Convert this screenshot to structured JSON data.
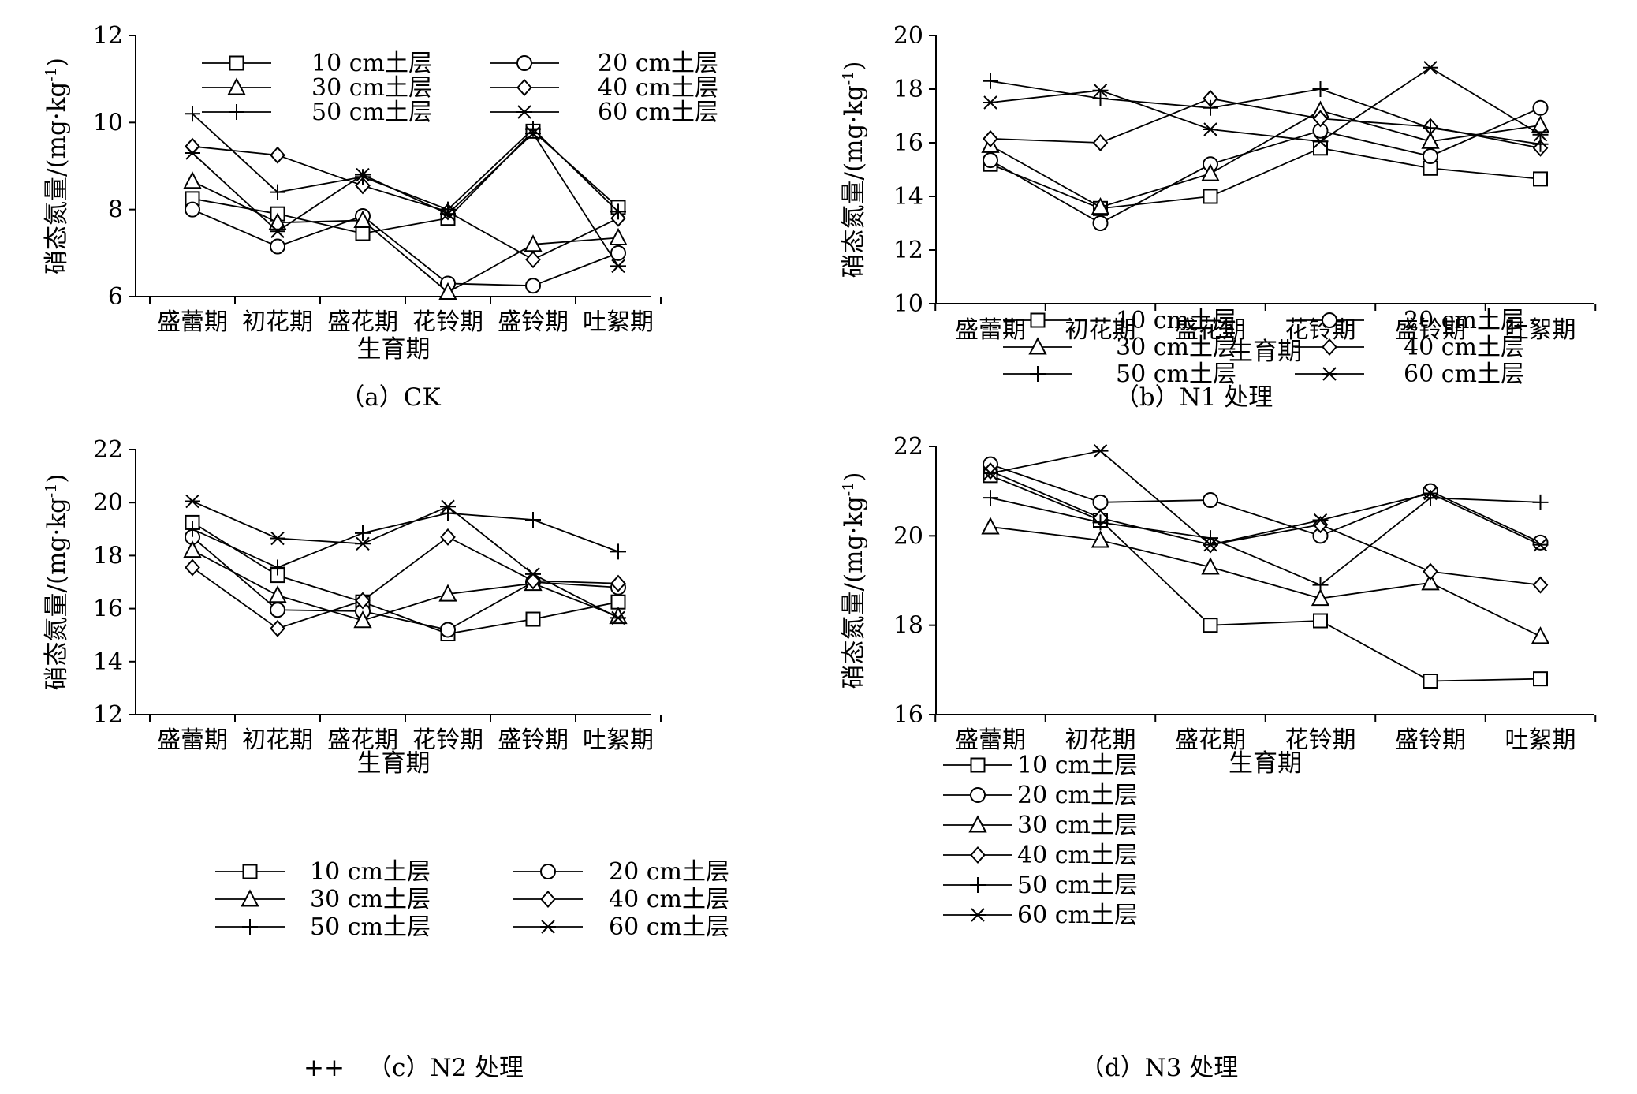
{
  "chart_data": [
    {
      "id": "a",
      "type": "line",
      "caption": "（a）CK",
      "xlabel": "生育期",
      "ylabel": "硝态氮量/(mg·kg",
      "ylabel_sup": "-1",
      "ylabel_close": ")",
      "categories": [
        "盛蕾期",
        "初花期",
        "盛花期",
        "花铃期",
        "盛铃期",
        "吐絮期"
      ],
      "ylim": [
        6,
        12
      ],
      "yticks": [
        6,
        8,
        10,
        12
      ],
      "legend_position": "top",
      "legend_columns": 2,
      "series": [
        {
          "name": "10 cm土层",
          "marker": "square",
          "values": [
            8.25,
            7.9,
            7.45,
            7.8,
            9.8,
            8.05
          ]
        },
        {
          "name": "20 cm土层",
          "marker": "circle",
          "values": [
            8.0,
            7.15,
            7.85,
            6.3,
            6.25,
            7.0
          ]
        },
        {
          "name": "30 cm土层",
          "marker": "triangle",
          "values": [
            8.65,
            7.7,
            7.75,
            6.1,
            7.2,
            7.35
          ]
        },
        {
          "name": "40 cm土层",
          "marker": "diamond",
          "values": [
            9.45,
            9.25,
            8.55,
            7.95,
            6.85,
            7.8
          ]
        },
        {
          "name": "50 cm土层",
          "marker": "plus",
          "values": [
            10.2,
            8.4,
            8.75,
            8.0,
            9.85,
            7.95
          ]
        },
        {
          "name": "60 cm土层",
          "marker": "asterisk",
          "values": [
            9.3,
            7.5,
            8.8,
            7.9,
            9.75,
            6.7
          ]
        }
      ]
    },
    {
      "id": "b",
      "type": "line",
      "caption": "（b）N1 处理",
      "xlabel": "生育期",
      "ylabel": "硝态氮量/(mg·kg",
      "ylabel_sup": "-1",
      "ylabel_close": ")",
      "categories": [
        "盛蕾期",
        "初花期",
        "盛花期",
        "花铃期",
        "盛铃期",
        "吐絮期"
      ],
      "ylim": [
        10,
        20
      ],
      "yticks": [
        10,
        12,
        14,
        16,
        18,
        20
      ],
      "legend_position": "bottom-left",
      "legend_columns": 2,
      "series": [
        {
          "name": "10 cm土层",
          "marker": "square",
          "values": [
            15.2,
            13.55,
            14.0,
            15.8,
            15.05,
            14.65
          ]
        },
        {
          "name": "20 cm土层",
          "marker": "circle",
          "values": [
            15.35,
            13.0,
            15.2,
            16.45,
            15.5,
            17.3
          ]
        },
        {
          "name": "30 cm土层",
          "marker": "triangle",
          "values": [
            15.9,
            13.6,
            14.85,
            17.2,
            16.05,
            16.65
          ]
        },
        {
          "name": "40 cm土层",
          "marker": "diamond",
          "values": [
            16.15,
            16.0,
            17.65,
            16.9,
            16.6,
            15.8
          ]
        },
        {
          "name": "50 cm土层",
          "marker": "plus",
          "values": [
            18.3,
            17.65,
            17.3,
            18.0,
            16.55,
            15.95
          ]
        },
        {
          "name": "60 cm土层",
          "marker": "asterisk",
          "values": [
            17.5,
            17.95,
            16.5,
            16.05,
            18.8,
            16.3
          ]
        }
      ]
    },
    {
      "id": "c",
      "type": "line",
      "caption": "（c）N2 处理",
      "xlabel": "生育期",
      "ylabel": "硝态氮量/(mg·kg",
      "ylabel_sup": "-1",
      "ylabel_close": ")",
      "categories": [
        "盛蕾期",
        "初花期",
        "盛花期",
        "花铃期",
        "盛铃期",
        "吐絮期"
      ],
      "ylim": [
        12,
        22
      ],
      "yticks": [
        12,
        14,
        16,
        18,
        20,
        22
      ],
      "legend_position": "bottom-left",
      "legend_columns": 2,
      "series": [
        {
          "name": "10 cm土层",
          "marker": "square",
          "values": [
            19.25,
            17.25,
            16.25,
            15.05,
            15.6,
            16.25
          ]
        },
        {
          "name": "20 cm土层",
          "marker": "circle",
          "values": [
            18.7,
            15.95,
            15.9,
            15.2,
            17.0,
            16.8
          ]
        },
        {
          "name": "30 cm土层",
          "marker": "triangle",
          "values": [
            18.2,
            16.5,
            15.55,
            16.55,
            16.95,
            15.7
          ]
        },
        {
          "name": "40 cm土层",
          "marker": "diamond",
          "values": [
            17.55,
            15.25,
            16.3,
            18.7,
            17.05,
            16.95
          ]
        },
        {
          "name": "50 cm土层",
          "marker": "plus",
          "values": [
            19.0,
            17.55,
            18.85,
            19.6,
            19.35,
            18.15
          ]
        },
        {
          "name": "60 cm土层",
          "marker": "asterisk",
          "values": [
            20.05,
            18.65,
            18.45,
            19.85,
            17.3,
            15.65
          ]
        }
      ]
    },
    {
      "id": "d",
      "type": "line",
      "caption": "（d）N3 处理",
      "xlabel": "生育期",
      "ylabel": "硝态氮量/(mg·kg",
      "ylabel_sup": "-1",
      "ylabel_close": ")",
      "categories": [
        "盛蕾期",
        "初花期",
        "盛花期",
        "花铃期",
        "盛铃期",
        "吐絮期"
      ],
      "ylim": [
        16,
        22
      ],
      "yticks": [
        16,
        18,
        20,
        22
      ],
      "legend_position": "left",
      "legend_columns": 1,
      "series": [
        {
          "name": "10 cm土层",
          "marker": "square",
          "values": [
            21.35,
            20.35,
            18.0,
            18.1,
            16.75,
            16.8
          ]
        },
        {
          "name": "20 cm土层",
          "marker": "circle",
          "values": [
            21.6,
            20.75,
            20.8,
            20.0,
            21.0,
            19.85
          ]
        },
        {
          "name": "30 cm土层",
          "marker": "triangle",
          "values": [
            20.2,
            19.9,
            19.3,
            18.6,
            18.95,
            17.75
          ]
        },
        {
          "name": "40 cm土层",
          "marker": "diamond",
          "values": [
            21.45,
            20.4,
            19.8,
            20.25,
            19.2,
            18.9
          ]
        },
        {
          "name": "50 cm土层",
          "marker": "plus",
          "values": [
            20.85,
            20.3,
            19.95,
            18.9,
            20.85,
            20.75
          ]
        },
        {
          "name": "60 cm土层",
          "marker": "asterisk",
          "values": [
            21.4,
            21.9,
            19.8,
            20.35,
            20.95,
            19.8
          ]
        }
      ]
    }
  ],
  "page_marks": {
    "stray": "++"
  }
}
